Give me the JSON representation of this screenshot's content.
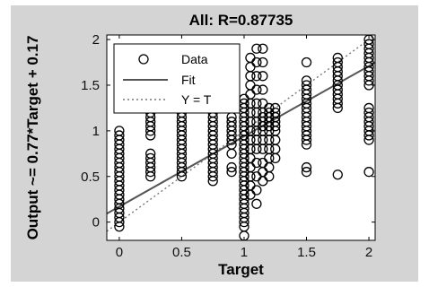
{
  "chart_data": {
    "type": "scatter",
    "title": "All: R=0.87735",
    "xlabel": "Target",
    "ylabel": "Output ~= 0.77*Target + 0.17",
    "xlim": [
      -0.1,
      2.05
    ],
    "ylim": [
      -0.2,
      2.05
    ],
    "xticks": [
      0,
      0.5,
      1,
      1.5,
      2
    ],
    "yticks": [
      0,
      0.5,
      1,
      1.5,
      2
    ],
    "xtick_labels": [
      "0",
      "0.5",
      "1",
      "1.5",
      "2"
    ],
    "ytick_labels": [
      "0",
      "0.5",
      "1",
      "1.5",
      "2"
    ],
    "grid": false,
    "legend_position": "top-left",
    "series": [
      {
        "name": "Data",
        "marker": "open-circle",
        "color": "#000000",
        "columns": [
          {
            "x": 0,
            "y": [
              -0.05,
              0.0,
              0.05,
              0.1,
              0.15,
              0.2,
              0.25,
              0.3,
              0.35,
              0.4,
              0.45,
              0.5,
              0.55,
              0.6,
              0.65,
              0.7,
              0.75,
              0.8,
              0.85,
              0.9,
              0.95,
              1.0
            ]
          },
          {
            "x": 0.25,
            "y": [
              0.5,
              0.55,
              0.6,
              0.65,
              0.7,
              0.75,
              0.95,
              1.0,
              1.05,
              1.1,
              1.15,
              1.2
            ]
          },
          {
            "x": 0.5,
            "y": [
              0.5,
              0.55,
              0.6,
              0.65,
              0.7,
              0.75,
              0.8,
              0.85,
              0.9,
              0.95,
              1.0,
              1.05,
              1.1,
              1.15,
              1.2,
              1.3,
              1.4,
              1.55,
              1.6
            ]
          },
          {
            "x": 0.75,
            "y": [
              0.45,
              0.5,
              0.55,
              0.6,
              0.65,
              0.7,
              0.75,
              0.8,
              0.85,
              0.9,
              0.95,
              1.0,
              1.05,
              1.1,
              1.15,
              1.2,
              1.25
            ]
          },
          {
            "x": 0.9,
            "y": [
              0.55,
              0.6,
              0.75,
              0.85,
              0.9,
              0.95,
              1.0,
              1.05,
              1.1,
              1.15
            ]
          },
          {
            "x": 1.0,
            "y": [
              -0.15,
              -0.05,
              0.0,
              0.05,
              0.1,
              0.15,
              0.2,
              0.25,
              0.3,
              0.35,
              0.4,
              0.45,
              0.5,
              0.55,
              0.6,
              0.65,
              0.7,
              0.75,
              0.8,
              0.85,
              0.9,
              0.95,
              1.0,
              1.05,
              1.1,
              1.15,
              1.2,
              1.25,
              1.3,
              1.35
            ]
          },
          {
            "x": 1.05,
            "y": [
              0.3,
              0.4,
              0.5,
              0.6,
              0.7,
              0.8,
              0.9,
              1.0,
              1.1,
              1.2,
              1.3,
              1.4,
              1.5,
              1.6,
              1.7,
              1.8
            ]
          },
          {
            "x": 1.1,
            "y": [
              0.2,
              0.35,
              0.5,
              0.65,
              0.8,
              0.9,
              1.0,
              1.1,
              1.2,
              1.3,
              1.45,
              1.6,
              1.75,
              1.9
            ]
          },
          {
            "x": 1.15,
            "y": [
              0.45,
              0.55,
              0.65,
              0.8,
              0.9,
              1.0,
              1.05,
              1.1,
              1.15,
              1.2,
              1.3,
              1.45,
              1.6,
              1.75,
              1.9
            ]
          },
          {
            "x": 1.2,
            "y": [
              0.5,
              0.6,
              0.7,
              0.8,
              0.9,
              1.0,
              1.05,
              1.1,
              1.15,
              1.2,
              1.25
            ]
          },
          {
            "x": 1.25,
            "y": [
              0.7,
              0.8,
              0.9,
              1.0,
              1.05,
              1.1,
              1.15,
              1.2,
              1.25
            ]
          },
          {
            "x": 1.5,
            "y": [
              0.55,
              0.6,
              0.85,
              0.9,
              0.95,
              1.0,
              1.05,
              1.1,
              1.15,
              1.2,
              1.25,
              1.3,
              1.35,
              1.4,
              1.45,
              1.5,
              1.55,
              1.75
            ]
          },
          {
            "x": 1.75,
            "y": [
              0.52,
              1.25,
              1.3,
              1.35,
              1.4,
              1.45,
              1.5,
              1.55,
              1.6,
              1.65,
              1.7,
              1.75,
              1.8
            ]
          },
          {
            "x": 2.0,
            "y": [
              0.55,
              0.9,
              0.95,
              1.0,
              1.05,
              1.1,
              1.15,
              1.2,
              1.25,
              1.5,
              1.55,
              1.6,
              1.65,
              1.7,
              1.75,
              1.8,
              1.85,
              1.9,
              1.95,
              2.0
            ]
          }
        ]
      },
      {
        "name": "Fit",
        "style": "solid-line",
        "color": "#555555",
        "slope": 0.77,
        "intercept": 0.17
      },
      {
        "name": "Y = T",
        "style": "dotted-line",
        "color": "#777777",
        "slope": 1,
        "intercept": 0
      }
    ]
  }
}
